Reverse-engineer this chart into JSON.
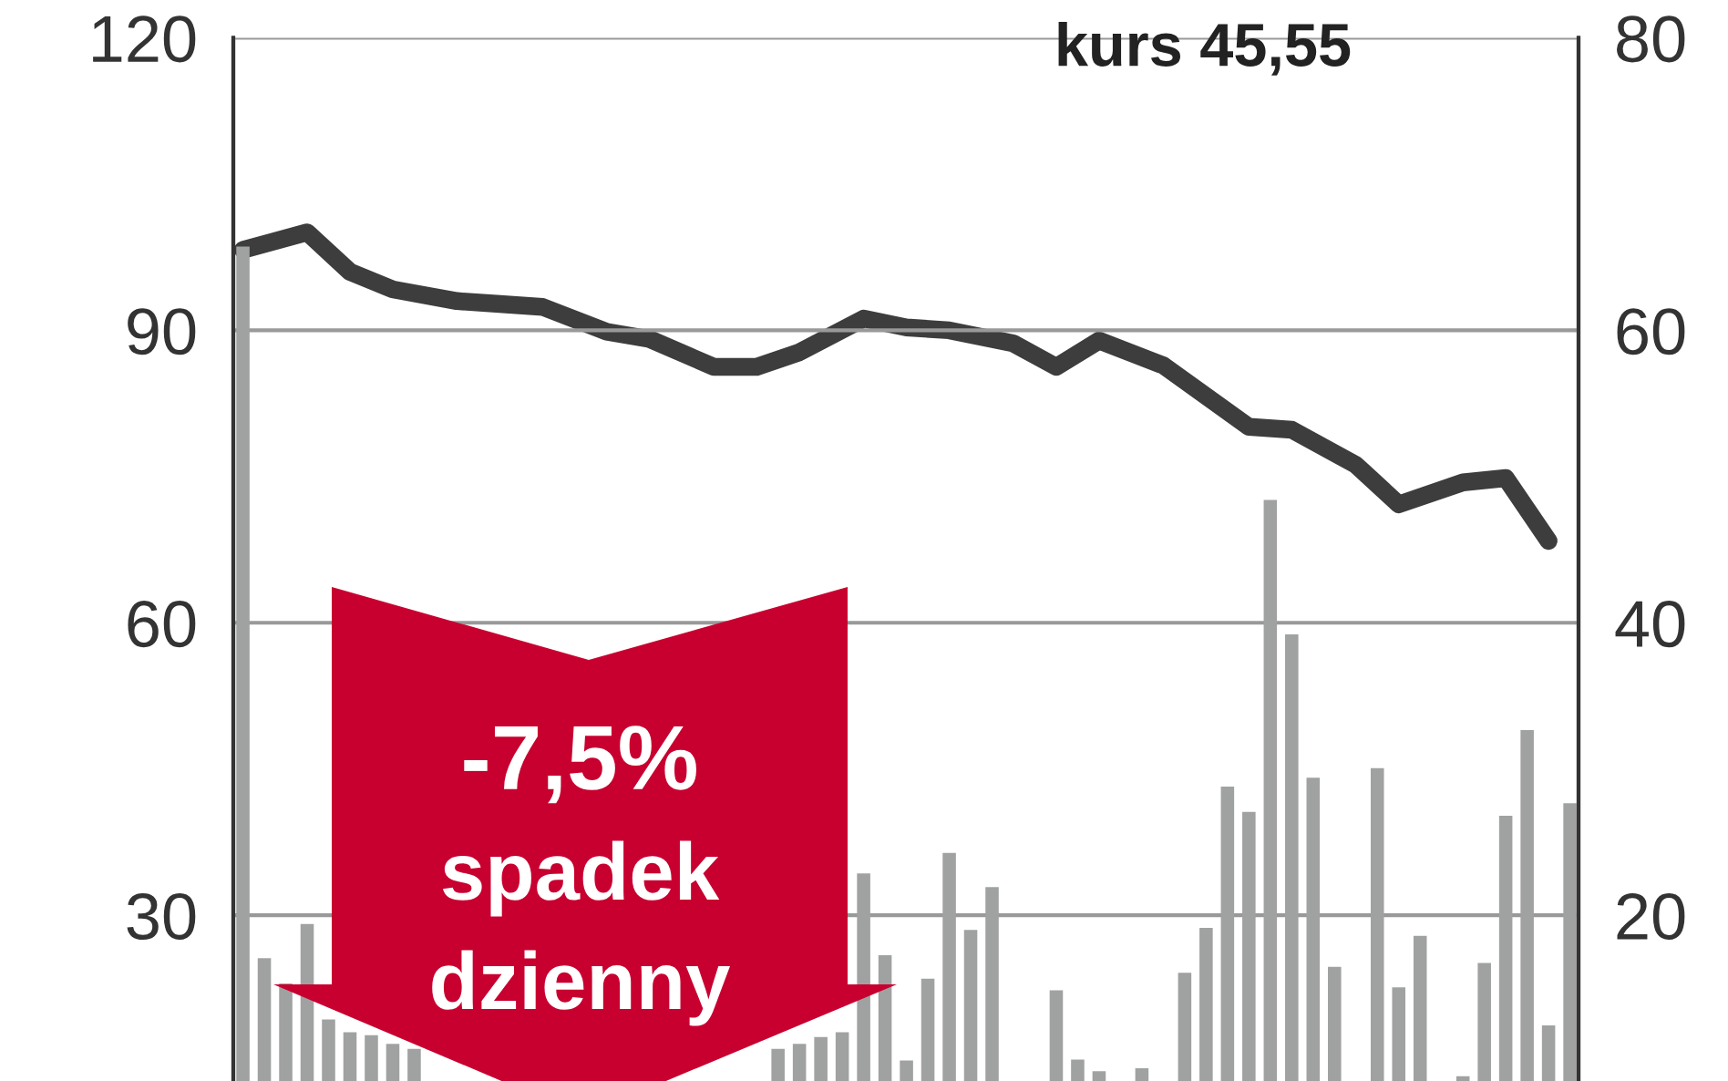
{
  "chart_data": {
    "type": "bar",
    "title": "kurs 45,55",
    "categories": [
      null,
      null,
      null,
      null,
      null,
      null,
      null,
      null,
      null,
      null,
      null,
      null,
      null,
      null,
      null,
      null,
      null,
      null,
      null,
      null,
      null,
      null,
      null,
      null,
      null,
      null,
      null,
      null,
      null,
      null,
      null,
      null,
      null,
      null,
      null,
      null,
      null,
      null,
      null,
      null,
      null,
      null,
      null,
      null,
      null,
      null,
      null,
      null,
      null,
      null,
      null,
      null,
      null,
      null,
      null,
      null,
      null,
      null,
      null,
      null,
      null,
      null,
      null
    ],
    "series": [
      {
        "color": "#a0a2a1",
        "values": [
          98.6,
          25.6,
          23,
          29.1,
          19.3,
          18,
          17.7,
          16.8,
          16.3,
          null,
          null,
          null,
          null,
          null,
          null,
          null,
          null,
          null,
          null,
          null,
          null,
          null,
          null,
          null,
          null,
          16.3,
          16.8,
          17.5,
          18,
          34.3,
          25.9,
          15.1,
          23.5,
          36.4,
          28.5,
          32.9,
          null,
          null,
          22.3,
          15.2,
          14,
          null,
          14.3,
          null,
          24.1,
          28.7,
          43.2,
          40.6,
          72.6,
          58.8,
          44.1,
          24.7,
          null,
          45.1,
          22.6,
          27.9,
          null,
          13.5,
          25.1,
          40.2,
          49,
          18.7,
          41.5
        ]
      },
      {
        "type": "line",
        "axis": "y2",
        "color": "#3d3d3d",
        "values": [
          65.5,
          null,
          null,
          66.7,
          null,
          64,
          null,
          62.8,
          null,
          null,
          62,
          null,
          61.8,
          null,
          61.6,
          null,
          null,
          59.9,
          null,
          59.4,
          null,
          null,
          57.5,
          null,
          57.5,
          null,
          58.5,
          null,
          null,
          60.8,
          null,
          60.2,
          null,
          60,
          null,
          null,
          59.1,
          null,
          57.5,
          null,
          59.3,
          null,
          null,
          57.6,
          null,
          55.5,
          null,
          53.4,
          null,
          53.2,
          null,
          null,
          50.8,
          null,
          48.1,
          null,
          null,
          49.6,
          null,
          49.9,
          null,
          45.6,
          null
        ]
      }
    ],
    "ylim": [
      13,
      120
    ],
    "yticks": [
      30,
      60,
      90,
      120
    ],
    "y2lim": [
      8.67,
      80
    ],
    "y2ticks": [
      20,
      40,
      60,
      80
    ],
    "grid": "y",
    "annotations": [
      "-7,5%",
      "spadek",
      "dzienny"
    ]
  }
}
